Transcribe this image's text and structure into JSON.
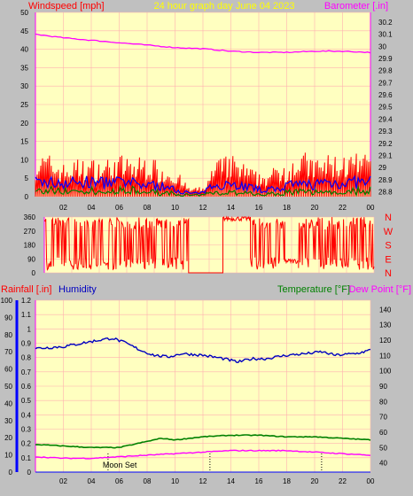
{
  "header": {
    "left_label": "Windspeed [mph]",
    "center_label": "24 hour graph day   June 04 2023",
    "right_label": "Barometer [.in]"
  },
  "labels": {
    "rainfall": "Rainfall [.in]",
    "humidity": "Humidity",
    "temperature": "Temperature [°F]",
    "dewpoint": "Dew Point [°F]",
    "moon": "Moon Set"
  },
  "colors": {
    "background": "#c0c0c0",
    "plot_bg": "#ffffc0",
    "grid": "#ffb0b0",
    "wind_speed": "#ff0000",
    "wind_avg": "#0000ff",
    "wind_low": "#008000",
    "barometer": "#ff00ff",
    "wind_dir": "#ff0000",
    "humidity": "#0000c0",
    "temperature": "#008000",
    "dewpoint": "#ff00ff",
    "rainfall_axis": "#0000ff",
    "header_center": "#ffff00"
  },
  "chart_data": [
    {
      "type": "line",
      "name": "wind_barometer",
      "x_ticks": [
        "02",
        "04",
        "06",
        "08",
        "10",
        "12",
        "14",
        "16",
        "18",
        "20",
        "22",
        "00"
      ],
      "wind_axis": {
        "range": [
          0,
          50
        ],
        "ticks": [
          0,
          5,
          10,
          15,
          20,
          25,
          30,
          35,
          40,
          45,
          50
        ]
      },
      "baro_axis": {
        "range": [
          28.76,
          30.28
        ],
        "ticks": [
          "28.8",
          "28.9",
          "29",
          "29.1",
          "29.2",
          "29.3",
          "29.4",
          "29.5",
          "29.6",
          "29.7",
          "29.8",
          "29.9",
          "30",
          "30.1",
          "30.2"
        ]
      },
      "barometer": [
        [
          0,
          30.1
        ],
        [
          2,
          30.07
        ],
        [
          4,
          30.05
        ],
        [
          6,
          30.03
        ],
        [
          8,
          30.01
        ],
        [
          10,
          29.99
        ],
        [
          12,
          29.98
        ],
        [
          14,
          29.96
        ],
        [
          16,
          29.95
        ],
        [
          18,
          29.95
        ],
        [
          20,
          29.96
        ],
        [
          22,
          29.96
        ],
        [
          24,
          29.95
        ]
      ],
      "wind_gust_profile": [
        [
          0,
          9
        ],
        [
          1,
          9
        ],
        [
          2,
          7
        ],
        [
          3,
          8
        ],
        [
          4,
          8
        ],
        [
          5,
          8
        ],
        [
          6,
          9
        ],
        [
          7,
          8
        ],
        [
          8,
          9
        ],
        [
          9,
          7
        ],
        [
          10,
          6
        ],
        [
          11,
          2
        ],
        [
          12,
          2
        ],
        [
          13,
          8
        ],
        [
          14,
          9
        ],
        [
          15,
          7
        ],
        [
          16,
          5
        ],
        [
          17,
          6
        ],
        [
          18,
          8
        ],
        [
          19,
          10
        ],
        [
          20,
          8
        ],
        [
          21,
          9
        ],
        [
          22,
          9
        ],
        [
          23,
          9
        ],
        [
          24,
          9
        ]
      ],
      "wind_avg_profile": [
        [
          0,
          4
        ],
        [
          3,
          4
        ],
        [
          6,
          4
        ],
        [
          9,
          3
        ],
        [
          11,
          1
        ],
        [
          12,
          1
        ],
        [
          13,
          4
        ],
        [
          15,
          3
        ],
        [
          16,
          2
        ],
        [
          17,
          2
        ],
        [
          18,
          3
        ],
        [
          21,
          4
        ],
        [
          24,
          4
        ]
      ],
      "grid": true
    },
    {
      "type": "line",
      "name": "wind_direction",
      "y_ticks": [
        "0",
        "90",
        "180",
        "270",
        "360"
      ],
      "compass": [
        "N",
        "W",
        "S",
        "E",
        "N"
      ],
      "range": [
        0,
        360
      ],
      "segments": [
        {
          "from": 0,
          "to": 10.5,
          "style": "flip"
        },
        {
          "from": 10.5,
          "to": 13,
          "style": "flat",
          "value": 0
        },
        {
          "from": 13,
          "to": 15,
          "style": "steady",
          "value": 350
        },
        {
          "from": 15,
          "to": 17.5,
          "style": "flip"
        },
        {
          "from": 17.5,
          "to": 18.5,
          "style": "steady",
          "value": 75
        },
        {
          "from": 18.5,
          "to": 24,
          "style": "flip"
        }
      ]
    },
    {
      "type": "line",
      "name": "humidity_temp",
      "humidity_axis": {
        "range": [
          0,
          100
        ],
        "ticks": [
          0,
          10,
          20,
          30,
          40,
          50,
          60,
          70,
          80,
          90,
          100
        ]
      },
      "rain_axis": {
        "range": [
          0,
          1.2
        ],
        "ticks": [
          "0",
          "0.1",
          "0.2",
          "0.3",
          "0.4",
          "0.5",
          "0.6",
          "0.7",
          "0.8",
          "0.9",
          "1",
          "1.1",
          "1.2"
        ]
      },
      "temp_axis": {
        "range": [
          34,
          146
        ],
        "ticks": [
          40,
          50,
          60,
          70,
          80,
          90,
          100,
          110,
          120,
          130,
          140
        ]
      },
      "humidity": [
        [
          0,
          72
        ],
        [
          2,
          73
        ],
        [
          4,
          76
        ],
        [
          5.5,
          78
        ],
        [
          6.5,
          75
        ],
        [
          7.5,
          71
        ],
        [
          8.5,
          68
        ],
        [
          9.5,
          67
        ],
        [
          10.5,
          69
        ],
        [
          12,
          68
        ],
        [
          13.5,
          66
        ],
        [
          14.5,
          64
        ],
        [
          15.5,
          66
        ],
        [
          16.5,
          66
        ],
        [
          18,
          68
        ],
        [
          19.5,
          69
        ],
        [
          20.5,
          70
        ],
        [
          21.5,
          68
        ],
        [
          23,
          69
        ],
        [
          24,
          71
        ]
      ],
      "temperature": [
        [
          0,
          52
        ],
        [
          2,
          51
        ],
        [
          4,
          50
        ],
        [
          6,
          50
        ],
        [
          7,
          52
        ],
        [
          8,
          54
        ],
        [
          9,
          56
        ],
        [
          10,
          55
        ],
        [
          11,
          56
        ],
        [
          12,
          57
        ],
        [
          14,
          58
        ],
        [
          16,
          58
        ],
        [
          18,
          57
        ],
        [
          20,
          57
        ],
        [
          22,
          56
        ],
        [
          24,
          55
        ]
      ],
      "dewpoint": [
        [
          0,
          44
        ],
        [
          2,
          43
        ],
        [
          4,
          43
        ],
        [
          6,
          44
        ],
        [
          8,
          45
        ],
        [
          10,
          46
        ],
        [
          12,
          47
        ],
        [
          14,
          48
        ],
        [
          16,
          48
        ],
        [
          18,
          48
        ],
        [
          20,
          47
        ],
        [
          22,
          46
        ],
        [
          24,
          45
        ]
      ],
      "rainfall": [
        [
          0,
          0
        ],
        [
          24,
          0
        ]
      ],
      "markers": [
        5.2,
        12.5,
        20.5
      ],
      "grid": true
    }
  ]
}
